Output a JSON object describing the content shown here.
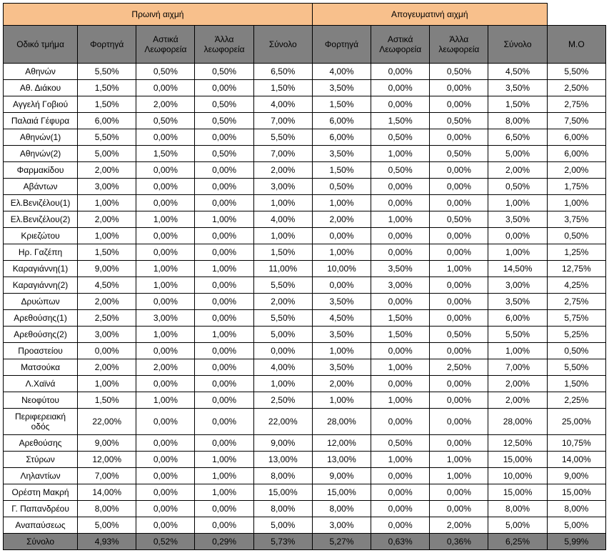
{
  "headers": {
    "group1": "Πρωινή αιχμή",
    "group2": "Απογευματινή αιχμή",
    "firstCol": "Οδικό τμήμα",
    "sub": [
      "Φορτηγά",
      "Αστικά Λεωφορεία",
      "Άλλα λεωφορεία",
      "Σύνολο",
      "Φορτηγά",
      "Αστικά Λεωφορεία",
      "Άλλα λεωφορεία",
      "Σύνολο",
      "Μ.Ο"
    ]
  },
  "rows": [
    {
      "label": "Αθηνών",
      "cells": [
        "5,50%",
        "0,50%",
        "0,50%",
        "6,50%",
        "4,00%",
        "0,00%",
        "0,50%",
        "4,50%",
        "5,50%"
      ]
    },
    {
      "label": "Αθ. Διάκου",
      "cells": [
        "1,50%",
        "0,00%",
        "0,00%",
        "1,50%",
        "3,50%",
        "0,00%",
        "0,00%",
        "3,50%",
        "2,50%"
      ]
    },
    {
      "label": "Αγγελή Γοβιού",
      "cells": [
        "1,50%",
        "2,00%",
        "0,50%",
        "4,00%",
        "1,50%",
        "0,00%",
        "0,00%",
        "1,50%",
        "2,75%"
      ]
    },
    {
      "label": "Παλαιά Γέφυρα",
      "cells": [
        "6,00%",
        "0,50%",
        "0,50%",
        "7,00%",
        "6,00%",
        "1,50%",
        "0,50%",
        "8,00%",
        "7,50%"
      ]
    },
    {
      "label": "Αθηνών(1)",
      "cells": [
        "5,50%",
        "0,00%",
        "0,00%",
        "5,50%",
        "6,00%",
        "0,50%",
        "0,00%",
        "6,50%",
        "6,00%"
      ]
    },
    {
      "label": "Αθηνών(2)",
      "cells": [
        "5,00%",
        "1,50%",
        "0,50%",
        "7,00%",
        "3,50%",
        "1,00%",
        "0,50%",
        "5,00%",
        "6,00%"
      ]
    },
    {
      "label": "Φαρμακίδου",
      "cells": [
        "2,00%",
        "0,00%",
        "0,00%",
        "2,00%",
        "1,50%",
        "0,50%",
        "0,00%",
        "2,00%",
        "2,00%"
      ]
    },
    {
      "label": "Αβάντων",
      "cells": [
        "3,00%",
        "0,00%",
        "0,00%",
        "3,00%",
        "0,50%",
        "0,00%",
        "0,00%",
        "0,50%",
        "1,75%"
      ]
    },
    {
      "label": "Ελ.Βενιζέλου(1)",
      "cells": [
        "1,00%",
        "0,00%",
        "0,00%",
        "1,00%",
        "1,00%",
        "0,00%",
        "0,00%",
        "1,00%",
        "1,00%"
      ]
    },
    {
      "label": "Ελ.Βενιζέλου(2)",
      "cells": [
        "2,00%",
        "1,00%",
        "1,00%",
        "4,00%",
        "2,00%",
        "1,00%",
        "0,50%",
        "3,50%",
        "3,75%"
      ]
    },
    {
      "label": "Κριεζώτου",
      "cells": [
        "1,00%",
        "0,00%",
        "0,00%",
        "1,00%",
        "0,00%",
        "0,00%",
        "0,00%",
        "0,00%",
        "0,50%"
      ]
    },
    {
      "label": "Ηρ. Γαζέπη",
      "cells": [
        "1,50%",
        "0,00%",
        "0,00%",
        "1,50%",
        "1,00%",
        "0,00%",
        "0,00%",
        "1,00%",
        "1,25%"
      ]
    },
    {
      "label": "Καραγιάννη(1)",
      "cells": [
        "9,00%",
        "1,00%",
        "1,00%",
        "11,00%",
        "10,00%",
        "3,50%",
        "1,00%",
        "14,50%",
        "12,75%"
      ]
    },
    {
      "label": "Καραγιάννη(2)",
      "cells": [
        "4,50%",
        "1,00%",
        "0,00%",
        "5,50%",
        "0,00%",
        "3,00%",
        "0,00%",
        "3,00%",
        "4,25%"
      ]
    },
    {
      "label": "Δρυώπων",
      "cells": [
        "2,00%",
        "0,00%",
        "0,00%",
        "2,00%",
        "3,50%",
        "0,00%",
        "0,00%",
        "3,50%",
        "2,75%"
      ]
    },
    {
      "label": "Αρεθούσης(1)",
      "cells": [
        "2,50%",
        "3,00%",
        "0,00%",
        "5,50%",
        "4,50%",
        "1,50%",
        "0,00%",
        "6,00%",
        "5,75%"
      ]
    },
    {
      "label": "Αρεθούσης(2)",
      "cells": [
        "3,00%",
        "1,00%",
        "1,00%",
        "5,00%",
        "3,50%",
        "1,50%",
        "0,50%",
        "5,50%",
        "5,25%"
      ]
    },
    {
      "label": "Προαστείου",
      "cells": [
        "0,00%",
        "0,00%",
        "0,00%",
        "0,00%",
        "1,00%",
        "0,00%",
        "0,00%",
        "1,00%",
        "0,50%"
      ]
    },
    {
      "label": "Ματσούκα",
      "cells": [
        "2,00%",
        "2,00%",
        "0,00%",
        "4,00%",
        "3,50%",
        "1,00%",
        "2,50%",
        "7,00%",
        "5,50%"
      ]
    },
    {
      "label": "Λ.Χαϊνά",
      "cells": [
        "1,00%",
        "0,00%",
        "0,00%",
        "1,00%",
        "2,00%",
        "0,00%",
        "0,00%",
        "2,00%",
        "1,50%"
      ]
    },
    {
      "label": "Νεοφύτου",
      "cells": [
        "1,50%",
        "1,00%",
        "0,00%",
        "2,50%",
        "1,00%",
        "1,00%",
        "0,00%",
        "2,00%",
        "2,25%"
      ]
    },
    {
      "label": "Περιφερειακή οδός",
      "cells": [
        "22,00%",
        "0,00%",
        "0,00%",
        "22,00%",
        "28,00%",
        "0,00%",
        "0,00%",
        "28,00%",
        "25,00%"
      ]
    },
    {
      "label": "Αρεθούσης",
      "cells": [
        "9,00%",
        "0,00%",
        "0,00%",
        "9,00%",
        "12,00%",
        "0,50%",
        "0,00%",
        "12,50%",
        "10,75%"
      ]
    },
    {
      "label": "Στύρων",
      "cells": [
        "12,00%",
        "0,00%",
        "1,00%",
        "13,00%",
        "13,00%",
        "1,00%",
        "1,00%",
        "15,00%",
        "14,00%"
      ]
    },
    {
      "label": "Ληλαντίων",
      "cells": [
        "7,00%",
        "0,00%",
        "1,00%",
        "8,00%",
        "9,00%",
        "0,00%",
        "1,00%",
        "10,00%",
        "9,00%"
      ]
    },
    {
      "label": "Ορέστη Μακρή",
      "cells": [
        "14,00%",
        "0,00%",
        "1,00%",
        "15,00%",
        "15,00%",
        "0,00%",
        "0,00%",
        "15,00%",
        "15,00%"
      ]
    },
    {
      "label": "Γ. Παπανδρέου",
      "cells": [
        "8,00%",
        "0,00%",
        "0,00%",
        "8,00%",
        "8,00%",
        "0,00%",
        "0,00%",
        "8,00%",
        "8,00%"
      ]
    },
    {
      "label": "Αναπαύσεως",
      "cells": [
        "5,00%",
        "0,00%",
        "0,00%",
        "5,00%",
        "3,00%",
        "0,00%",
        "2,00%",
        "5,00%",
        "5,00%"
      ]
    }
  ],
  "totalRow": {
    "label": "Σύνολο",
    "cells": [
      "4,93%",
      "0,52%",
      "0,29%",
      "5,73%",
      "5,27%",
      "0,63%",
      "0,36%",
      "6,25%",
      "5,99%"
    ]
  },
  "style": {
    "topHeaderBg": "#f8c08c",
    "subHeaderBg": "#808080",
    "totalRowBg": "#808080",
    "borderColor": "#000000",
    "fontSize": 12,
    "widthPx": 845
  }
}
